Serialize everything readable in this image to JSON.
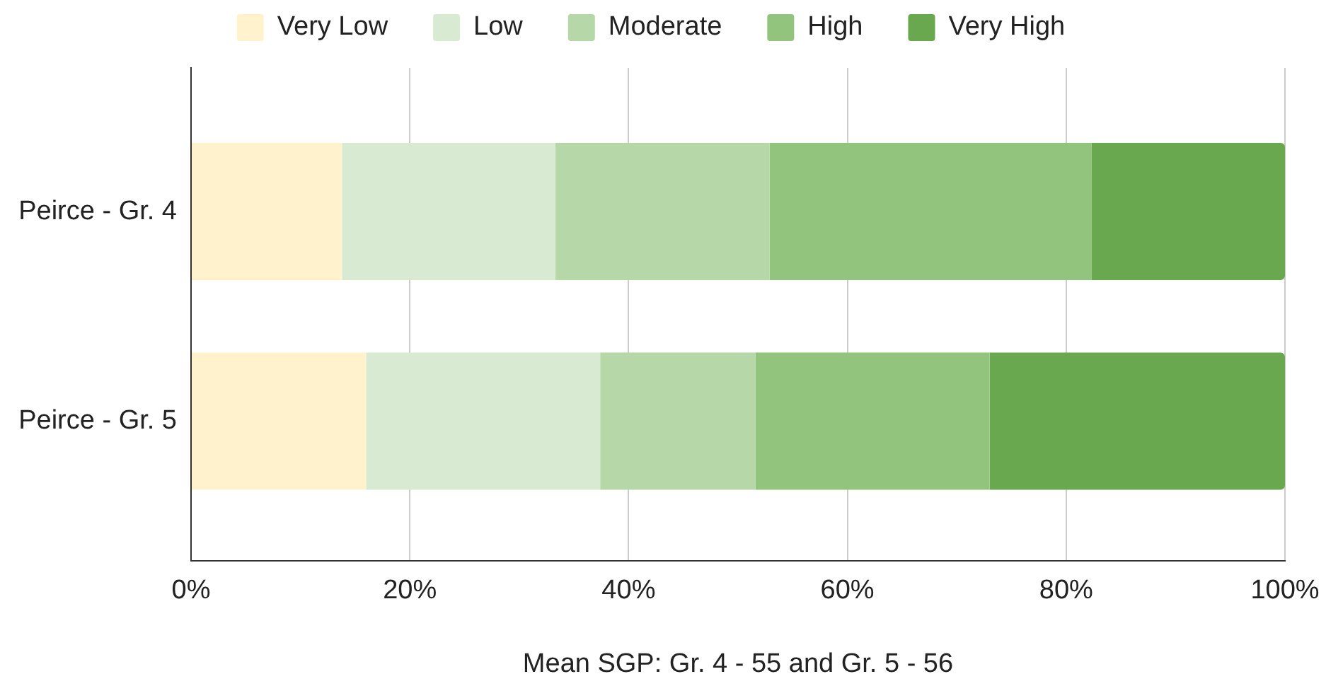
{
  "chart_data": {
    "type": "bar",
    "orientation": "horizontal",
    "stacked": true,
    "xlabel": "Mean SGP: Gr. 4 - 55 and Gr. 5 - 56",
    "categories": [
      "Peirce - Gr. 4",
      "Peirce - Gr. 5"
    ],
    "series": [
      {
        "name": "Very Low",
        "color": "#fff2cc",
        "values": [
          13.8,
          16.0
        ]
      },
      {
        "name": "Low",
        "color": "#d9ead3",
        "values": [
          19.5,
          21.4
        ]
      },
      {
        "name": "Moderate",
        "color": "#b6d7a8",
        "values": [
          19.6,
          14.2
        ]
      },
      {
        "name": "High",
        "color": "#93c47d",
        "values": [
          29.4,
          21.4
        ]
      },
      {
        "name": "Very High",
        "color": "#6aa84f",
        "values": [
          17.7,
          27.0
        ]
      }
    ],
    "xlim": [
      0,
      100
    ],
    "xticks": [
      {
        "value": 0,
        "label": "0%"
      },
      {
        "value": 20,
        "label": "20%"
      },
      {
        "value": 40,
        "label": "40%"
      },
      {
        "value": 60,
        "label": "60%"
      },
      {
        "value": 80,
        "label": "80%"
      },
      {
        "value": 100,
        "label": "100%"
      }
    ],
    "grid": "x",
    "legend": "top"
  }
}
